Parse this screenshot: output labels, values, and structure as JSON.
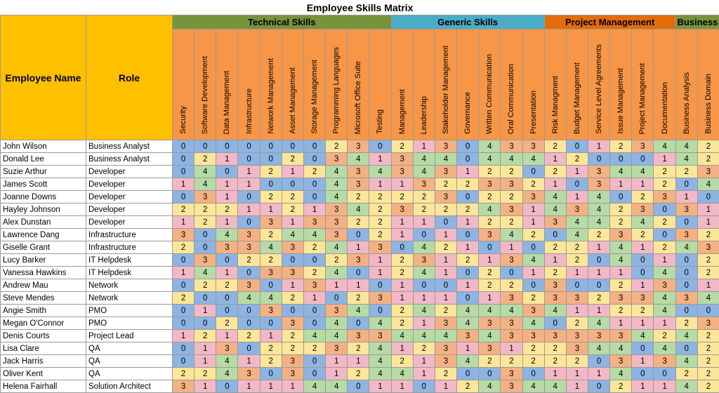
{
  "title": "Employee Skills Matrix",
  "headers": {
    "name": "Employee Name",
    "role": "Role"
  },
  "groups": [
    {
      "label": "Technical Skills",
      "span": 10,
      "color": "#77933c"
    },
    {
      "label": "Generic Skills",
      "span": 7,
      "color": "#4bacc6"
    },
    {
      "label": "Project Management",
      "span": 6,
      "color": "#e46c0a"
    },
    {
      "label": "Business",
      "span": 2,
      "color": "#77933c"
    }
  ],
  "skills": [
    "Security",
    "Software Development",
    "Data Management",
    "Infrastructure",
    "Network Management",
    "Asset Management",
    "Storage Management",
    "Programming Languages",
    "Microsoft Office Suite",
    "Testing",
    "Management",
    "Leadership",
    "Stakeholder Management",
    "Governance",
    "Written Communication",
    "Oral Communication",
    "Presentation",
    "Risk Managment",
    "Budget Management",
    "Service Level Agreements",
    "Issue Management",
    "Project Management",
    "Documentation",
    "Business Analysis",
    "Business Domain"
  ],
  "level_colors": {
    "0": "#8db4e2",
    "1": "#f2b8c6",
    "2": "#fde699",
    "3": "#f4b183",
    "4": "#b6dba5"
  },
  "employees": [
    {
      "name": "John Wilson",
      "role": "Business Analyst",
      "scores": [
        0,
        0,
        0,
        0,
        0,
        0,
        0,
        2,
        3,
        0,
        2,
        1,
        3,
        0,
        4,
        3,
        3,
        2,
        0,
        1,
        2,
        3,
        4,
        4,
        2
      ]
    },
    {
      "name": "Donald Lee",
      "role": "Business Analyst",
      "scores": [
        0,
        2,
        1,
        0,
        0,
        2,
        0,
        3,
        4,
        1,
        3,
        4,
        4,
        0,
        4,
        4,
        4,
        1,
        2,
        0,
        0,
        0,
        1,
        4,
        2
      ]
    },
    {
      "name": "Suzie Arthur",
      "role": "Developer",
      "scores": [
        0,
        4,
        0,
        1,
        2,
        1,
        2,
        4,
        3,
        4,
        3,
        4,
        3,
        1,
        2,
        2,
        0,
        2,
        1,
        3,
        4,
        4,
        2,
        2,
        3
      ]
    },
    {
      "name": "James Scott",
      "role": "Developer",
      "scores": [
        1,
        4,
        1,
        1,
        0,
        0,
        0,
        4,
        3,
        1,
        1,
        3,
        2,
        2,
        3,
        3,
        2,
        1,
        0,
        3,
        1,
        1,
        2,
        0,
        4
      ]
    },
    {
      "name": "Joanne Downs",
      "role": "Developer",
      "scores": [
        0,
        3,
        1,
        0,
        2,
        2,
        0,
        4,
        2,
        2,
        2,
        2,
        3,
        0,
        2,
        2,
        3,
        4,
        1,
        4,
        0,
        2,
        3,
        1,
        0
      ]
    },
    {
      "name": "Hayley Johnson",
      "role": "Developer",
      "scores": [
        2,
        2,
        2,
        1,
        1,
        2,
        1,
        3,
        4,
        2,
        3,
        2,
        2,
        2,
        4,
        3,
        1,
        4,
        3,
        4,
        2,
        3,
        0,
        3,
        1
      ]
    },
    {
      "name": "Alex Dunstan",
      "role": "Developer",
      "scores": [
        1,
        2,
        1,
        0,
        3,
        1,
        3,
        3,
        2,
        2,
        1,
        1,
        0,
        1,
        2,
        2,
        1,
        3,
        4,
        4,
        2,
        4,
        2,
        0,
        1
      ]
    },
    {
      "name": "Lawrence Dang",
      "role": "Infrastructure",
      "scores": [
        3,
        0,
        4,
        3,
        2,
        4,
        4,
        3,
        0,
        2,
        1,
        0,
        1,
        0,
        3,
        4,
        2,
        0,
        4,
        2,
        3,
        2,
        0,
        3,
        2
      ]
    },
    {
      "name": "Giselle Grant",
      "role": "Infrastructure",
      "scores": [
        2,
        0,
        3,
        3,
        4,
        3,
        2,
        4,
        1,
        3,
        0,
        4,
        2,
        1,
        0,
        1,
        0,
        2,
        2,
        1,
        4,
        1,
        2,
        4,
        3
      ]
    },
    {
      "name": "Lucy Barker",
      "role": "IT Helpdesk",
      "scores": [
        0,
        3,
        0,
        2,
        2,
        0,
        0,
        2,
        3,
        1,
        2,
        3,
        1,
        2,
        1,
        3,
        4,
        1,
        2,
        0,
        4,
        0,
        1,
        0,
        2
      ]
    },
    {
      "name": "Vanessa Hawkins",
      "role": "IT Helpdesk",
      "scores": [
        1,
        4,
        1,
        0,
        3,
        3,
        2,
        4,
        0,
        1,
        2,
        4,
        1,
        0,
        2,
        0,
        1,
        2,
        1,
        1,
        1,
        0,
        4,
        0,
        2
      ]
    },
    {
      "name": "Andrew Mau",
      "role": "Network",
      "scores": [
        0,
        2,
        2,
        3,
        0,
        1,
        3,
        1,
        1,
        0,
        1,
        0,
        0,
        1,
        2,
        2,
        0,
        3,
        0,
        0,
        2,
        1,
        3,
        0,
        1
      ]
    },
    {
      "name": "Steve Mendes",
      "role": "Network",
      "scores": [
        2,
        0,
        0,
        4,
        4,
        2,
        1,
        0,
        2,
        3,
        1,
        1,
        1,
        0,
        1,
        3,
        2,
        3,
        3,
        2,
        3,
        3,
        4,
        3,
        4
      ]
    },
    {
      "name": "Angie Smith",
      "role": "PMO",
      "scores": [
        0,
        1,
        0,
        0,
        3,
        0,
        0,
        3,
        4,
        0,
        2,
        4,
        2,
        4,
        4,
        4,
        3,
        4,
        1,
        1,
        2,
        2,
        4,
        0,
        0
      ]
    },
    {
      "name": "Megan O'Connor",
      "role": "PMO",
      "scores": [
        0,
        0,
        2,
        0,
        0,
        3,
        0,
        4,
        0,
        4,
        2,
        1,
        3,
        4,
        3,
        3,
        4,
        0,
        2,
        4,
        1,
        1,
        1,
        2,
        3
      ]
    },
    {
      "name": "Denis Courts",
      "role": "Project Lead",
      "scores": [
        1,
        2,
        1,
        2,
        1,
        2,
        4,
        4,
        3,
        3,
        4,
        4,
        4,
        3,
        4,
        3,
        3,
        3,
        3,
        3,
        3,
        4,
        2,
        4,
        2
      ]
    },
    {
      "name": "Lisa Clare",
      "role": "QA",
      "scores": [
        0,
        1,
        3,
        0,
        2,
        2,
        2,
        3,
        2,
        4,
        1,
        2,
        3,
        1,
        3,
        1,
        2,
        2,
        3,
        4,
        4,
        0,
        4,
        0,
        2
      ]
    },
    {
      "name": "Jack Harris",
      "role": "QA",
      "scores": [
        0,
        1,
        4,
        1,
        2,
        3,
        0,
        1,
        1,
        4,
        2,
        1,
        3,
        4,
        2,
        2,
        2,
        2,
        2,
        0,
        3,
        1,
        3,
        4,
        2
      ]
    },
    {
      "name": "Oliver Kent",
      "role": "QA",
      "scores": [
        2,
        2,
        4,
        3,
        0,
        3,
        0,
        1,
        2,
        4,
        4,
        1,
        2,
        0,
        0,
        3,
        0,
        1,
        1,
        1,
        4,
        0,
        0,
        2,
        2
      ]
    },
    {
      "name": "Helena Fairhall",
      "role": "Solution Architect",
      "scores": [
        3,
        1,
        0,
        1,
        1,
        1,
        4,
        4,
        0,
        1,
        1,
        0,
        1,
        2,
        4,
        3,
        4,
        4,
        1,
        0,
        2,
        1,
        1,
        4,
        2
      ]
    }
  ]
}
